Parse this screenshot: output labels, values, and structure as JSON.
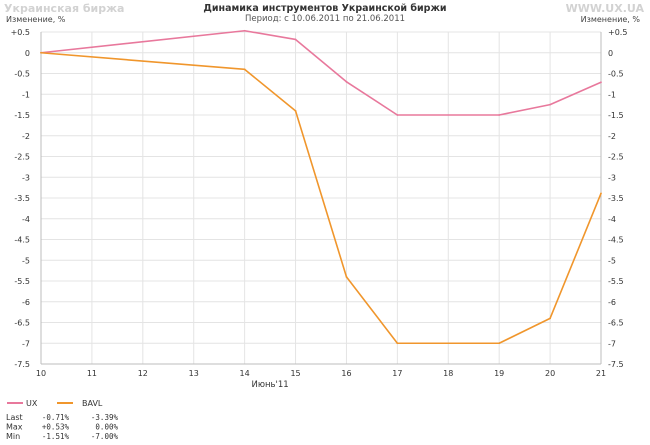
{
  "header": {
    "watermark_left": "Украинская биржа",
    "watermark_right": "WWW.UX.UA",
    "title": "Динамика инструментов Украинской биржи",
    "subtitle": "Период: с 10.06.2011 по 21.06.2011",
    "ylabel_left": "Изменение, %",
    "ylabel_right": "Изменение, %"
  },
  "chart_data": {
    "type": "line",
    "title": "Динамика инструментов Украинской биржи",
    "subtitle": "Период: с 10.06.2011 по 21.06.2011",
    "xlabel": "Июнь'11",
    "ylabel": "Изменение, %",
    "x_ticks": [
      "10",
      "11",
      "12",
      "13",
      "14",
      "15",
      "16",
      "17",
      "18",
      "19",
      "20",
      "21"
    ],
    "x": [
      "10",
      "14",
      "15",
      "16",
      "17",
      "19",
      "20",
      "21"
    ],
    "ylim": [
      -7.5,
      0.5
    ],
    "y_ticks": [
      "+0.5",
      "0",
      "-0.5",
      "-1",
      "-1.5",
      "-2",
      "-2.5",
      "-3",
      "-3.5",
      "-4",
      "-4.5",
      "-5",
      "-5.5",
      "-6",
      "-6.5",
      "-7",
      "-7.5"
    ],
    "grid": true,
    "series": [
      {
        "name": "UX",
        "color": "#e8789c",
        "values": [
          0,
          0.53,
          0.32,
          -0.7,
          -1.5,
          -1.5,
          -1.25,
          -0.71
        ]
      },
      {
        "name": "BAVL",
        "color": "#f0962c",
        "values": [
          0,
          -0.4,
          -1.4,
          -5.4,
          -7.0,
          -7.0,
          -6.4,
          -3.39
        ]
      }
    ],
    "legend": {
      "row_labels": [
        "Last",
        "Max",
        "Min"
      ],
      "stats": [
        [
          "-0.71%",
          "+0.53%",
          "-1.51%"
        ],
        [
          "-3.39%",
          "0.00%",
          "-7.00%"
        ]
      ]
    }
  }
}
